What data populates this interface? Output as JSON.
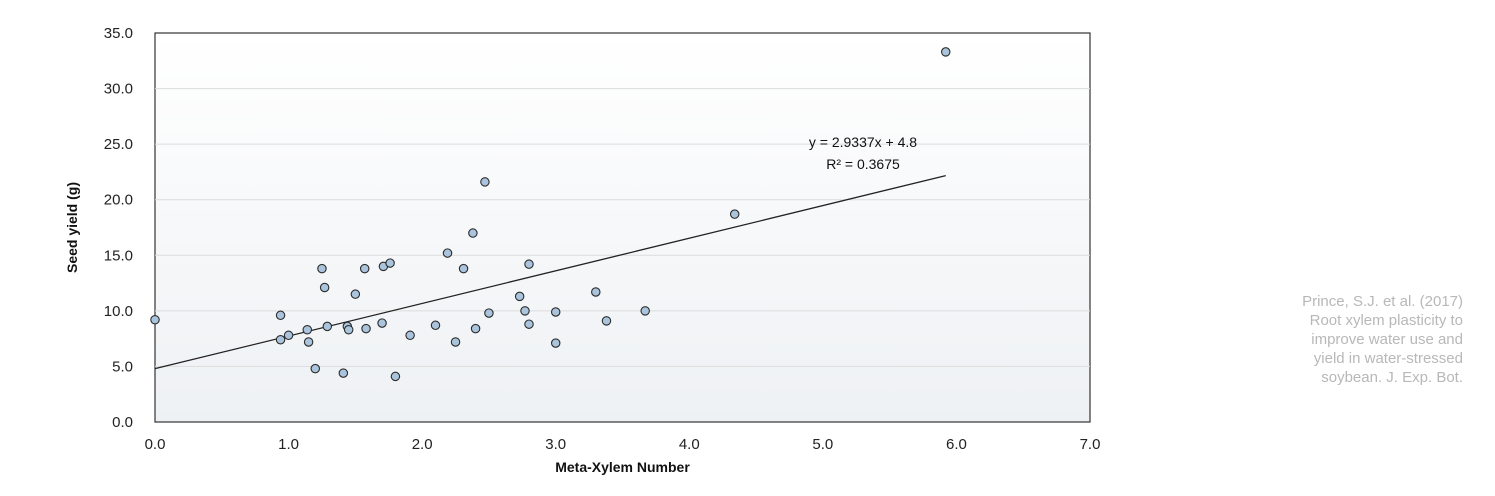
{
  "chart_data": {
    "type": "scatter",
    "title": "",
    "xlabel": "Meta-Xylem Number",
    "ylabel": "Seed yield (g)",
    "xlim": [
      0,
      7
    ],
    "ylim": [
      0,
      35
    ],
    "xticks": [
      "0.0",
      "1.0",
      "2.0",
      "3.0",
      "4.0",
      "5.0",
      "6.0",
      "7.0"
    ],
    "yticks": [
      "0.0",
      "5.0",
      "10.0",
      "15.0",
      "20.0",
      "25.0",
      "30.0",
      "35.0"
    ],
    "grid": "horizontal",
    "legend": "none",
    "point_color": "#a9c4dc",
    "trendline": {
      "type": "linear",
      "slope": 2.9337,
      "intercept": 4.8,
      "x_range": [
        0,
        5.92
      ],
      "equation_label": "y = 2.9337x + 4.8",
      "r2_label": "R² = 0.3675"
    },
    "points": [
      {
        "x": 0.0,
        "y": 9.2
      },
      {
        "x": 0.94,
        "y": 9.6
      },
      {
        "x": 0.94,
        "y": 7.4
      },
      {
        "x": 1.0,
        "y": 7.8
      },
      {
        "x": 1.14,
        "y": 8.3
      },
      {
        "x": 1.15,
        "y": 7.2
      },
      {
        "x": 1.2,
        "y": 4.8
      },
      {
        "x": 1.25,
        "y": 13.8
      },
      {
        "x": 1.27,
        "y": 12.1
      },
      {
        "x": 1.29,
        "y": 8.6
      },
      {
        "x": 1.41,
        "y": 4.4
      },
      {
        "x": 1.44,
        "y": 8.6
      },
      {
        "x": 1.45,
        "y": 8.3
      },
      {
        "x": 1.5,
        "y": 11.5
      },
      {
        "x": 1.57,
        "y": 13.8
      },
      {
        "x": 1.58,
        "y": 8.4
      },
      {
        "x": 1.7,
        "y": 8.9
      },
      {
        "x": 1.71,
        "y": 14.0
      },
      {
        "x": 1.76,
        "y": 14.3
      },
      {
        "x": 1.8,
        "y": 4.1
      },
      {
        "x": 1.91,
        "y": 7.8
      },
      {
        "x": 2.1,
        "y": 8.7
      },
      {
        "x": 2.19,
        "y": 15.2
      },
      {
        "x": 2.25,
        "y": 7.2
      },
      {
        "x": 2.31,
        "y": 13.8
      },
      {
        "x": 2.38,
        "y": 17.0
      },
      {
        "x": 2.4,
        "y": 8.4
      },
      {
        "x": 2.47,
        "y": 21.6
      },
      {
        "x": 2.5,
        "y": 9.8
      },
      {
        "x": 2.73,
        "y": 11.3
      },
      {
        "x": 2.77,
        "y": 10.0
      },
      {
        "x": 2.8,
        "y": 8.8
      },
      {
        "x": 2.8,
        "y": 14.2
      },
      {
        "x": 3.0,
        "y": 9.9
      },
      {
        "x": 3.0,
        "y": 7.1
      },
      {
        "x": 3.3,
        "y": 11.7
      },
      {
        "x": 3.38,
        "y": 9.1
      },
      {
        "x": 3.67,
        "y": 10.0
      },
      {
        "x": 4.34,
        "y": 18.7
      },
      {
        "x": 5.92,
        "y": 33.3
      }
    ]
  },
  "caption": {
    "lines": [
      "Prince, S.J. et al. (2017)",
      "Root xylem plasticity to",
      "improve water use and",
      "yield in water-stressed",
      "soybean. J. Exp. Bot."
    ]
  }
}
